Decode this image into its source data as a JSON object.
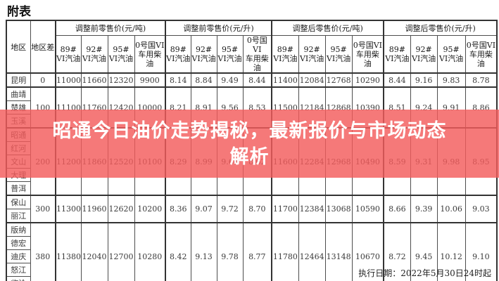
{
  "title": "附表",
  "banner": {
    "line1": "昭通今日油价走势揭秘，最新报价与市场动态",
    "line2": "解析",
    "color": "#f35c5c",
    "text_color": "#ffffff"
  },
  "footer": {
    "execution_date": "执行日期：2022年5月30日24时起"
  },
  "table": {
    "col_region": "地区",
    "col_region_diff": "地区差",
    "sections": [
      "调整前零售价(元/吨)",
      "调整前零售价(元/升)",
      "调整后零售价(元/吨)",
      "调整后零售价(元/升)"
    ],
    "products": [
      {
        "l1": "89#",
        "l2": "VI汽油"
      },
      {
        "l1": "92#",
        "l2": "VI汽油"
      },
      {
        "l1": "95#",
        "l2": "VI汽油"
      },
      {
        "l1": "0号国VI",
        "l2": "车用柴油"
      }
    ],
    "groups": [
      {
        "regions": [
          "昆明"
        ],
        "diff": "0",
        "pre_ton": [
          "11000",
          "11660",
          "12320",
          "9900"
        ],
        "pre_liter": [
          "8.14",
          "8.84",
          "9.49",
          "8.44"
        ],
        "post_ton": [
          "11400",
          "12084",
          "12768",
          "10290"
        ],
        "post_liter": [
          "8.44",
          "9.16",
          "9.83",
          "8.78"
        ]
      },
      {
        "regions": [
          "曲靖",
          "楚雄",
          "玉溪"
        ],
        "diff": "100",
        "pre_ton": [
          "11100",
          "11760",
          "12420",
          "10000"
        ],
        "pre_liter": [
          "8.21",
          "8.91",
          "9.56",
          "8.53"
        ],
        "post_ton": [
          "11500",
          "12184",
          "12868",
          "10390"
        ],
        "post_liter": [
          "8.51",
          "9.24",
          "9.91",
          "8.86"
        ]
      },
      {
        "regions": [
          "昭通",
          "红河",
          "文山",
          "大理",
          "普洱"
        ],
        "diff": "200",
        "pre_ton": [
          "11200",
          "11860",
          "12520",
          "10100"
        ],
        "pre_liter": [
          "8.29",
          "8.99",
          "9.64",
          "8.62"
        ],
        "post_ton": [
          "11600",
          "12284",
          "12968",
          "10490"
        ],
        "post_liter": [
          "8.59",
          "9.31",
          "9.98",
          "8.95"
        ]
      },
      {
        "regions": [
          "保山",
          "丽江"
        ],
        "diff": "300",
        "pre_ton": [
          "11300",
          "11960",
          "12620",
          "10200"
        ],
        "pre_liter": [
          "8.36",
          "9.07",
          "9.72",
          "8.70"
        ],
        "post_ton": [
          "11700",
          "12384",
          "13068",
          "10590"
        ],
        "post_liter": [
          "8.66",
          "9.39",
          "10.06",
          "9.03"
        ]
      },
      {
        "regions": [
          "版纳",
          "德宏",
          "迪庆",
          "怒江",
          "临沧"
        ],
        "diff": "380",
        "pre_ton": [
          "11380",
          "12040",
          "12700",
          "10280"
        ],
        "pre_liter": [
          "8.42",
          "9.13",
          "9.78",
          "8.77"
        ],
        "post_ton": [
          "11780",
          "12464",
          "13148",
          "10670"
        ],
        "post_liter": [
          "8.72",
          "9.45",
          "10.12",
          "9.10"
        ]
      }
    ]
  }
}
